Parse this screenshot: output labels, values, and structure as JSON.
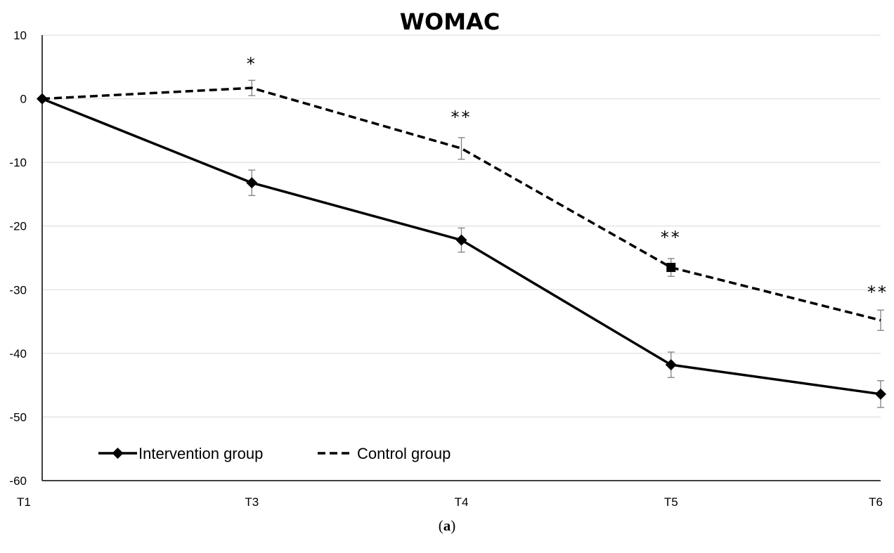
{
  "figure": {
    "panel_label_open": "(",
    "panel_label_letter": "a",
    "panel_label_close": ")"
  },
  "chart_data": {
    "type": "line",
    "title": "WOMAC",
    "xlabel": "",
    "ylabel": "",
    "categories": [
      "T1",
      "T3",
      "T4",
      "T5",
      "T6"
    ],
    "ylim": [
      -60,
      10
    ],
    "yticks": [
      10,
      0,
      -10,
      -20,
      -30,
      -40,
      -50,
      -60
    ],
    "grid": true,
    "legend_position": "bottom-left",
    "series": [
      {
        "name": "Intervention group",
        "values": [
          0,
          -13.2,
          -22.2,
          -41.8,
          -46.4
        ],
        "errors": [
          0,
          2.0,
          1.9,
          2.0,
          2.1
        ],
        "line_style": "solid",
        "marker": "diamond",
        "marker_at": [
          0,
          1,
          2,
          3,
          4
        ],
        "color": "#000000"
      },
      {
        "name": "Control group",
        "values": [
          0,
          1.7,
          -7.8,
          -26.5,
          -34.8
        ],
        "errors": [
          0,
          1.2,
          1.7,
          1.4,
          1.6
        ],
        "line_style": "dashed",
        "marker": "square",
        "marker_at": [
          3
        ],
        "color": "#000000"
      }
    ],
    "annotations": [
      {
        "category": "T3",
        "text": "*",
        "y": 4.6
      },
      {
        "category": "T4",
        "text": "**",
        "y": -3.8
      },
      {
        "category": "T5",
        "text": "**",
        "y": -22.7
      },
      {
        "category": "T6",
        "text": "**",
        "y": -31.3
      }
    ]
  }
}
